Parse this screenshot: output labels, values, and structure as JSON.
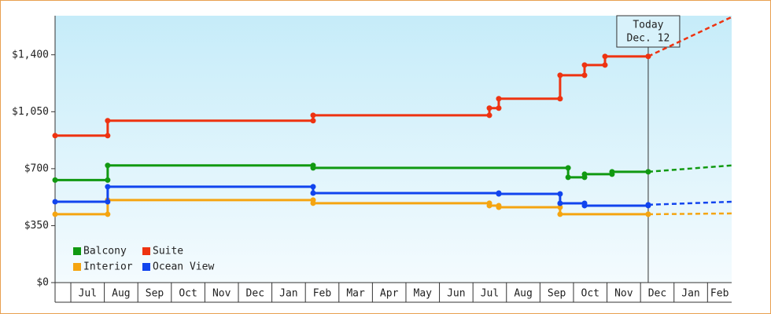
{
  "chart_data": {
    "type": "step",
    "categories": [
      "Jul",
      "Aug",
      "Sep",
      "Oct",
      "Nov",
      "Dec",
      "Jan",
      "Feb",
      "Mar",
      "Apr",
      "May",
      "Jun",
      "Jul",
      "Aug",
      "Sep",
      "Oct",
      "Nov",
      "Dec",
      "Jan",
      "Feb"
    ],
    "xlim": [
      -0.47,
      19.72
    ],
    "ylim": [
      0,
      1640
    ],
    "yticks": [
      {
        "value": 0,
        "label": "$0"
      },
      {
        "value": 350,
        "label": "$350"
      },
      {
        "value": 700,
        "label": "$700"
      },
      {
        "value": 1050,
        "label": "$1,050"
      },
      {
        "value": 1400,
        "label": "$1,400"
      }
    ],
    "legend": "bottom-left",
    "annotation": {
      "lines": [
        "Today",
        "Dec. 12"
      ],
      "x": 17.23
    },
    "series": [
      {
        "name": "Balcony",
        "color": "#119911",
        "x": [
          -0.47,
          1.1,
          7.23,
          14.84,
          15.33,
          16.15,
          17.23
        ],
        "values": [
          630,
          720,
          705,
          647,
          666,
          681,
          681
        ],
        "forecast": {
          "x": [
            17.23,
            19.72
          ],
          "values": [
            681,
            720
          ]
        }
      },
      {
        "name": "Suite",
        "color": "#ee3311",
        "x": [
          -0.47,
          1.1,
          7.23,
          12.49,
          12.77,
          14.6,
          15.33,
          15.94,
          17.23
        ],
        "values": [
          903,
          995,
          1028,
          1072,
          1130,
          1274,
          1337,
          1390,
          1390
        ],
        "forecast": {
          "x": [
            17.23,
            19.72
          ],
          "values": [
            1390,
            1632
          ]
        }
      },
      {
        "name": "Interior",
        "color": "#f5a511",
        "x": [
          -0.47,
          1.1,
          7.23,
          12.49,
          12.77,
          14.6,
          17.23
        ],
        "values": [
          420,
          507,
          488,
          473,
          463,
          420,
          420
        ],
        "forecast": {
          "x": [
            17.23,
            19.72
          ],
          "values": [
            420,
            425
          ]
        }
      },
      {
        "name": "Ocean View",
        "color": "#1144ee",
        "x": [
          -0.47,
          1.1,
          7.23,
          12.77,
          14.6,
          15.33,
          17.23
        ],
        "values": [
          497,
          589,
          550,
          545,
          487,
          473,
          478
        ],
        "forecast": {
          "x": [
            17.23,
            19.72
          ],
          "values": [
            478,
            497
          ]
        }
      }
    ]
  }
}
